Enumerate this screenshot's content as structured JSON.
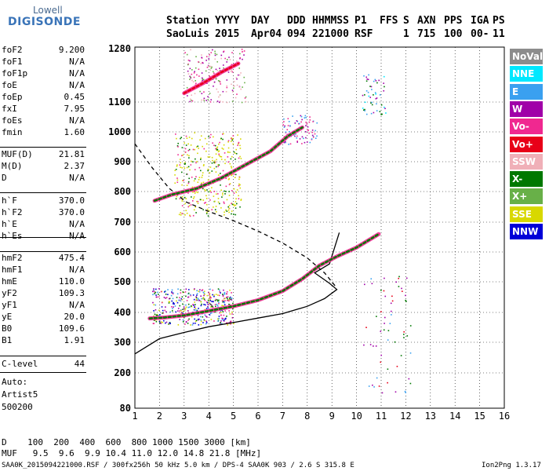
{
  "logo": {
    "line1": "Lowell",
    "line2": "DIGISONDE"
  },
  "header": {
    "row1": [
      "Station",
      "YYYY",
      "DAY",
      "DDD",
      "HHMMSS",
      "P1",
      "FFS",
      "S",
      "AXN",
      "PPS",
      "IGA",
      "PS"
    ],
    "row2": [
      "SaoLuis",
      "2015",
      "Apr04",
      "094",
      "221000",
      "RSF",
      "",
      "1",
      "715",
      "100",
      "00-",
      "11"
    ]
  },
  "params_group1": [
    {
      "k": "foF2",
      "v": "9.200"
    },
    {
      "k": "foF1",
      "v": "N/A"
    },
    {
      "k": "foF1p",
      "v": "N/A"
    },
    {
      "k": "foE",
      "v": "N/A"
    },
    {
      "k": "foEp",
      "v": "0.45"
    },
    {
      "k": "fxI",
      "v": "7.95"
    },
    {
      "k": "foEs",
      "v": "N/A"
    },
    {
      "k": "fmin",
      "v": "1.60"
    }
  ],
  "params_group2": [
    {
      "k": "MUF(D)",
      "v": "21.81"
    },
    {
      "k": "M(D)",
      "v": "2.37"
    },
    {
      "k": "D",
      "v": "N/A"
    }
  ],
  "params_group3": [
    {
      "k": "h`F",
      "v": "370.0"
    },
    {
      "k": "h`F2",
      "v": "370.0"
    },
    {
      "k": "h`E",
      "v": "N/A"
    },
    {
      "k": "h`Es",
      "v": "N/A"
    }
  ],
  "params_group4": [
    {
      "k": "hmF2",
      "v": "475.4"
    },
    {
      "k": "hmF1",
      "v": "N/A"
    },
    {
      "k": "hmE",
      "v": "110.0"
    },
    {
      "k": "yF2",
      "v": "109.3"
    },
    {
      "k": "yF1",
      "v": "N/A"
    },
    {
      "k": "yE",
      "v": "20.0"
    },
    {
      "k": "B0",
      "v": "109.6"
    },
    {
      "k": "B1",
      "v": "1.91"
    }
  ],
  "params_group5": [
    {
      "k": "C-level",
      "v": "44"
    }
  ],
  "auto": {
    "l1": "Auto:",
    "l2": "Artist5",
    "l3": "500200"
  },
  "legend": [
    {
      "label": "NoVal",
      "color": "#8c8c8c"
    },
    {
      "label": "NNE",
      "color": "#00e8ff"
    },
    {
      "label": "E",
      "color": "#3aa0f0"
    },
    {
      "label": "W",
      "color": "#a000a8"
    },
    {
      "label": "Vo-",
      "color": "#f02890"
    },
    {
      "label": "Vo+",
      "color": "#e80018"
    },
    {
      "label": "SSW",
      "color": "#f0b0b8"
    },
    {
      "label": "X-",
      "color": "#007800"
    },
    {
      "label": "X+",
      "color": "#68b048"
    },
    {
      "label": "SSE",
      "color": "#d8d800"
    },
    {
      "label": "NNW",
      "color": "#0000d8"
    }
  ],
  "footer": {
    "d_row": "D    100  200  400  600  800 1000 1500 3000 [km]",
    "muf_row": "MUF   9.5  9.6  9.9 10.4 11.0 12.0 14.8 21.8 [MHz]",
    "info": "SAA0K_2015094221000.RSF / 300fx256h 50 kHz 5.0 km / DPS-4 SAA0K 903 / 2.6 S 315.8 E",
    "version": "Ion2Png 1.3.17"
  },
  "chart_data": {
    "type": "scatter",
    "xlabel": "",
    "ylabel": "",
    "xlim": [
      1,
      16
    ],
    "ylim": [
      80,
      1280
    ],
    "y_scale": "custom-nonlinear",
    "x_ticks": [
      1,
      2,
      3,
      4,
      5,
      6,
      7,
      8,
      9,
      10,
      11,
      12,
      13,
      14,
      15,
      16
    ],
    "y_ticks": [
      80,
      200,
      300,
      400,
      500,
      600,
      700,
      800,
      900,
      1000,
      1100,
      1280
    ],
    "grid": true,
    "series": [
      {
        "color": "#000000",
        "style": "solid",
        "points": [
          [
            1.0,
            262
          ],
          [
            2.0,
            312
          ],
          [
            3.0,
            333
          ],
          [
            4.0,
            352
          ],
          [
            5.0,
            366
          ],
          [
            6.0,
            381
          ],
          [
            7.0,
            396
          ],
          [
            8.0,
            420
          ],
          [
            8.7,
            445
          ],
          [
            9.2,
            475
          ],
          [
            8.9,
            495
          ],
          [
            8.3,
            530
          ],
          [
            8.9,
            560
          ],
          [
            9.3,
            665
          ]
        ]
      },
      {
        "color": "#000000",
        "style": "dashed",
        "points": [
          [
            1.0,
            960
          ],
          [
            1.7,
            880
          ],
          [
            2.4,
            810
          ],
          [
            3.1,
            765
          ],
          [
            4.0,
            735
          ],
          [
            5.0,
            705
          ],
          [
            6.0,
            670
          ],
          [
            7.0,
            630
          ],
          [
            8.0,
            580
          ],
          [
            8.7,
            530
          ],
          [
            9.2,
            480
          ]
        ]
      },
      {
        "color": "#007800",
        "style": "trace",
        "points": [
          [
            1.6,
            380
          ],
          [
            2.2,
            383
          ],
          [
            3.0,
            390
          ],
          [
            4.0,
            405
          ],
          [
            5.0,
            420
          ],
          [
            6.0,
            440
          ],
          [
            7.0,
            470
          ],
          [
            7.8,
            510
          ],
          [
            8.5,
            555
          ],
          [
            9.2,
            585
          ],
          [
            10.0,
            615
          ],
          [
            10.9,
            660
          ]
        ]
      },
      {
        "color": "#007800",
        "style": "trace",
        "points": [
          [
            1.8,
            770
          ],
          [
            2.5,
            790
          ],
          [
            3.5,
            810
          ],
          [
            4.5,
            845
          ],
          [
            5.5,
            890
          ],
          [
            6.5,
            935
          ],
          [
            7.2,
            985
          ],
          [
            7.8,
            1015
          ]
        ]
      },
      {
        "color": "#e80018",
        "style": "trace",
        "points": [
          [
            3.0,
            1130
          ],
          [
            3.8,
            1165
          ],
          [
            4.5,
            1200
          ],
          [
            5.2,
            1230
          ]
        ]
      }
    ]
  }
}
